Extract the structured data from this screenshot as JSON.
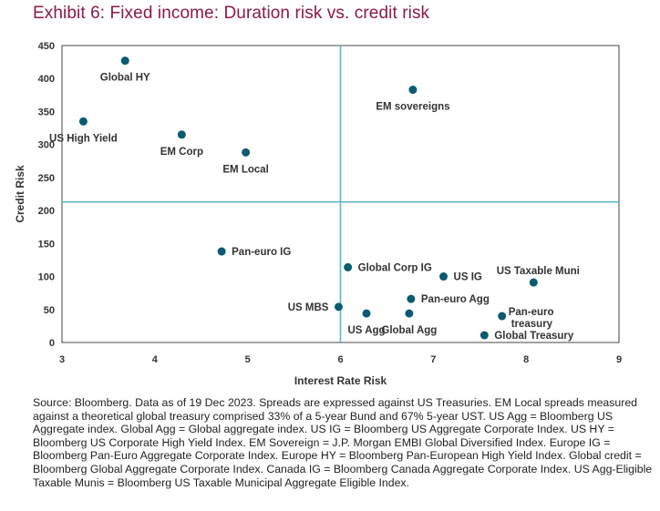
{
  "title": "Exhibit 6: Fixed income: Duration risk vs. credit risk",
  "source_note": "Source: Bloomberg. Data as of 19 Dec 2023. Spreads are expressed against US Treasuries. EM Local spreads measured against a theoretical global treasury comprised 33% of a 5-year Bund and 67% 5-year UST. US Agg = Bloomberg US Aggregate index. Global Agg = Global aggregate index. US IG = Bloomberg US Aggregate Corporate Index. US HY = Bloomberg US Corporate High Yield Index. EM Sovereign = J.P. Morgan EMBI Global Diversified Index. Europe IG = Bloomberg Pan-Euro Aggregate Corporate Index. Europe HY = Bloomberg Pan-European High Yield Index. Global credit = Bloomberg Global Aggregate Corporate Index. Canada IG = Bloomberg Canada Aggregate Corporate Index. US Agg-Eligible Taxable Munis = Bloomberg US Taxable Municipal Aggregate Eligible Index.",
  "colors": {
    "title": "#8b1a47",
    "point": "#0b5a73",
    "quadrant_line": "#5bb8c8",
    "axis": "#444444"
  },
  "chart_data": {
    "type": "scatter",
    "title": "Exhibit 6: Fixed income: Duration risk vs. credit risk",
    "xlabel": "Interest Rate Risk",
    "ylabel": "Credit Risk",
    "xlim": [
      3,
      9
    ],
    "ylim": [
      0,
      450
    ],
    "xticks": [
      3,
      4,
      5,
      6,
      7,
      8,
      9
    ],
    "yticks": [
      0,
      50,
      100,
      150,
      200,
      250,
      300,
      350,
      400,
      450
    ],
    "quadrant_lines": {
      "x": 6.0,
      "y": 213
    },
    "grid": false,
    "points": [
      {
        "label": "Global HY",
        "x": 3.68,
        "y": 427,
        "label_pos": "below"
      },
      {
        "label": "US High Yield",
        "x": 3.23,
        "y": 335,
        "label_pos": "below"
      },
      {
        "label": "EM Corp",
        "x": 4.29,
        "y": 315,
        "label_pos": "below"
      },
      {
        "label": "EM Local",
        "x": 4.98,
        "y": 288,
        "label_pos": "below"
      },
      {
        "label": "EM sovereigns",
        "x": 6.78,
        "y": 383,
        "label_pos": "below"
      },
      {
        "label": "Pan-euro  IG",
        "x": 4.72,
        "y": 138,
        "label_pos": "right"
      },
      {
        "label": "Global Corp IG",
        "x": 6.08,
        "y": 114,
        "label_pos": "right"
      },
      {
        "label": "US  IG",
        "x": 7.11,
        "y": 100,
        "label_pos": "right"
      },
      {
        "label": "US Taxable Muni",
        "x": 8.08,
        "y": 91,
        "label_pos": "above-left"
      },
      {
        "label": "Pan-euro Agg",
        "x": 6.76,
        "y": 66,
        "label_pos": "right"
      },
      {
        "label": "US MBS",
        "x": 5.98,
        "y": 54,
        "label_pos": "left"
      },
      {
        "label": "US Agg",
        "x": 6.28,
        "y": 44,
        "label_pos": "below"
      },
      {
        "label": "Global Agg",
        "x": 6.74,
        "y": 44,
        "label_pos": "below"
      },
      {
        "label": "Pan-euro treasury",
        "x": 7.74,
        "y": 40,
        "label_pos": "right-2line"
      },
      {
        "label": "Global Treasury",
        "x": 7.55,
        "y": 11,
        "label_pos": "right"
      }
    ]
  }
}
